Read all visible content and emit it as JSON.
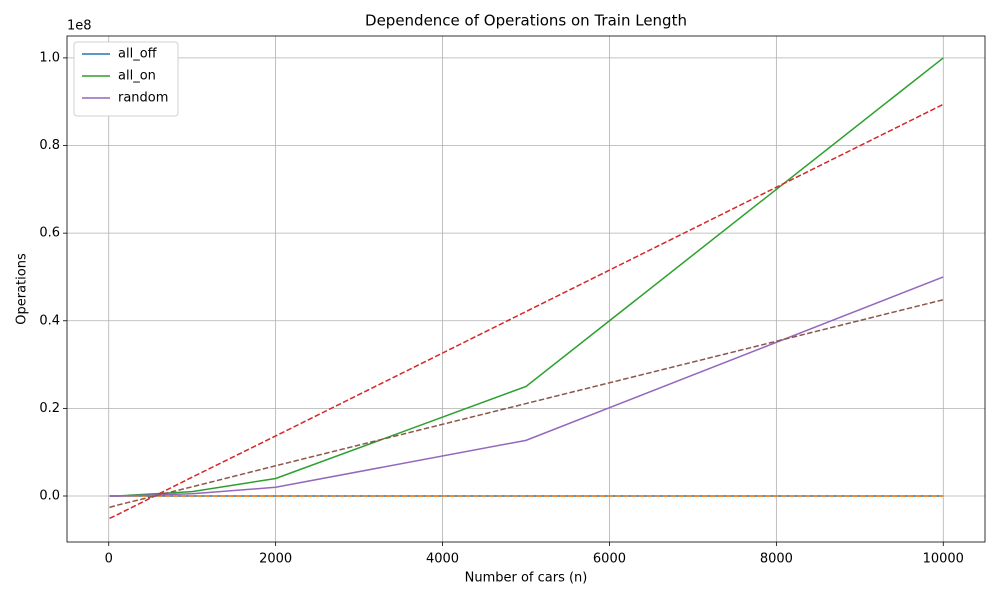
{
  "chart_data": {
    "type": "line",
    "title": "Dependence of Operations on Train Length",
    "x_label": "Number of cars (n)",
    "y_label": "Operations",
    "y_offset_label": "1e8",
    "x": [
      10,
      100,
      1000,
      2000,
      5000,
      10000
    ],
    "series": [
      {
        "name": "all_off",
        "color": "#1f77b4",
        "values": [
          0,
          0,
          0,
          0,
          0,
          0
        ]
      },
      {
        "color": "#ff7f0e",
        "dashed": true,
        "values": [
          0,
          0,
          0,
          0,
          0,
          0
        ]
      },
      {
        "name": "all_on",
        "color": "#2ca02c",
        "values": [
          0,
          0,
          0.01,
          0.04,
          0.25,
          1.0
        ]
      },
      {
        "color": "#d62728",
        "dashed": true,
        "values": [
          -0.051,
          -0.043,
          0.043,
          0.137,
          0.421,
          0.894
        ]
      },
      {
        "name": "random",
        "color": "#9467bd",
        "values": [
          0,
          0,
          0.005,
          0.02,
          0.127,
          0.5
        ]
      },
      {
        "color": "#8c564b",
        "dashed": true,
        "values": [
          -0.026,
          -0.021,
          0.021,
          0.069,
          0.211,
          0.448
        ]
      }
    ],
    "xlim": [
      -500,
      10500
    ],
    "ylim": [
      -0.105,
      1.05
    ],
    "xticks": [
      0,
      2000,
      4000,
      6000,
      8000,
      10000
    ],
    "yticks": [
      {
        "value": 0,
        "label": "0.0"
      },
      0.2,
      0.4,
      0.6,
      0.8,
      {
        "value": 1,
        "label": "1.0"
      }
    ],
    "grid": true,
    "legend": "upper left"
  }
}
